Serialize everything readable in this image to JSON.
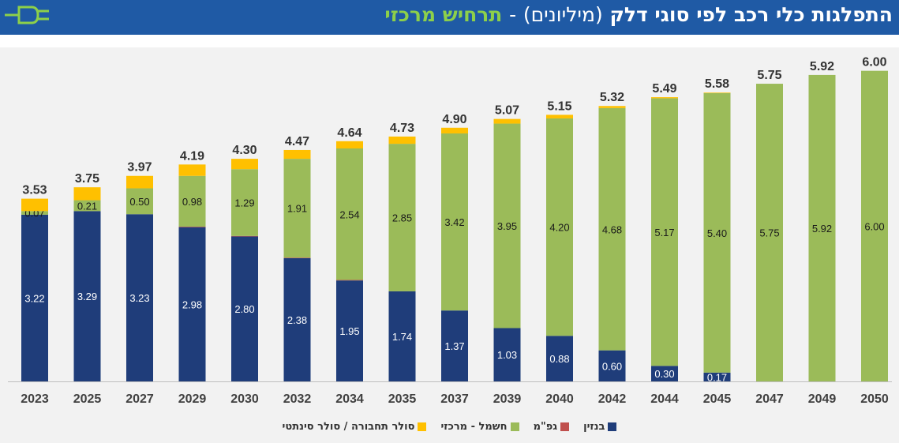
{
  "header": {
    "title_main": "התפלגות כלי רכב לפי סוגי דלק",
    "title_unit": "(מיליונים)",
    "title_sep": "-",
    "title_scenario": "תרחיש מרכזי",
    "plug_icon": "plug-icon"
  },
  "colors": {
    "header_bg": "#1f5aa5",
    "scenario_text": "#8dd04a",
    "gasoline": "#1f3d7a",
    "lpg": "#c0504d",
    "electric": "#9bbb59",
    "synthetic": "#ffc000"
  },
  "chart_data": {
    "type": "bar",
    "stacked": true,
    "categories": [
      "2023",
      "2025",
      "2027",
      "2029",
      "2030",
      "2032",
      "2034",
      "2035",
      "2037",
      "2039",
      "2040",
      "2042",
      "2044",
      "2045",
      "2047",
      "2049",
      "2050"
    ],
    "totals": [
      3.53,
      3.75,
      3.97,
      4.19,
      4.3,
      4.47,
      4.64,
      4.73,
      4.9,
      5.07,
      5.15,
      5.32,
      5.49,
      5.58,
      5.75,
      5.92,
      6.0
    ],
    "total_labels": [
      "3.53",
      "3.75",
      "3.97",
      "4.19",
      "4.30",
      "4.47",
      "4.64",
      "4.73",
      "4.90",
      "5.07",
      "5.15",
      "5.32",
      "5.49",
      "5.58",
      "5.75",
      "5.92",
      "6.00"
    ],
    "series": [
      {
        "name": "בנזין",
        "color": "#1f3d7a",
        "values": [
          3.22,
          3.29,
          3.23,
          2.98,
          2.8,
          2.38,
          1.95,
          1.74,
          1.37,
          1.03,
          0.88,
          0.6,
          0.3,
          0.17,
          0,
          0,
          0
        ],
        "labels": [
          "3.22",
          "3.29",
          "3.23",
          "2.98",
          "2.80",
          "2.38",
          "1.95",
          "1.74",
          "1.37",
          "1.03",
          "0.88",
          "0.60",
          "0.30",
          "0.17",
          "",
          "",
          ""
        ]
      },
      {
        "name": "גפ\"מ",
        "color": "#c0504d",
        "values": [
          0,
          0,
          0,
          0.01,
          0.01,
          0.01,
          0.01,
          0,
          0,
          0,
          0,
          0,
          0,
          0,
          0,
          0,
          0
        ],
        "labels": [
          "",
          "",
          "",
          "",
          "",
          "",
          "",
          "",
          "",
          "",
          "",
          "",
          "",
          "",
          "",
          "",
          ""
        ]
      },
      {
        "name": "חשמל - מרכזי",
        "color": "#9bbb59",
        "values": [
          0.07,
          0.21,
          0.5,
          0.98,
          1.29,
          1.91,
          2.54,
          2.85,
          3.42,
          3.95,
          4.2,
          4.68,
          5.17,
          5.4,
          5.75,
          5.92,
          6.0
        ],
        "labels": [
          "0.07",
          "0.21",
          "0.50",
          "0.98",
          "1.29",
          "1.91",
          "2.54",
          "2.85",
          "3.42",
          "3.95",
          "4.20",
          "4.68",
          "5.17",
          "5.40",
          "5.75",
          "5.92",
          "6.00"
        ]
      },
      {
        "name": "סולר תחבורה / סולר סינתטי",
        "color": "#ffc000",
        "values": [
          0.24,
          0.25,
          0.24,
          0.22,
          0.2,
          0.17,
          0.14,
          0.14,
          0.11,
          0.09,
          0.07,
          0.04,
          0.02,
          0.01,
          0,
          0,
          0
        ],
        "labels": [
          "",
          "",
          "",
          "",
          "",
          "",
          "",
          "",
          "",
          "",
          "",
          "",
          "",
          "",
          "",
          "",
          ""
        ]
      }
    ],
    "ylim": [
      0,
      6.3
    ],
    "legend_position": "bottom",
    "grid": false
  }
}
